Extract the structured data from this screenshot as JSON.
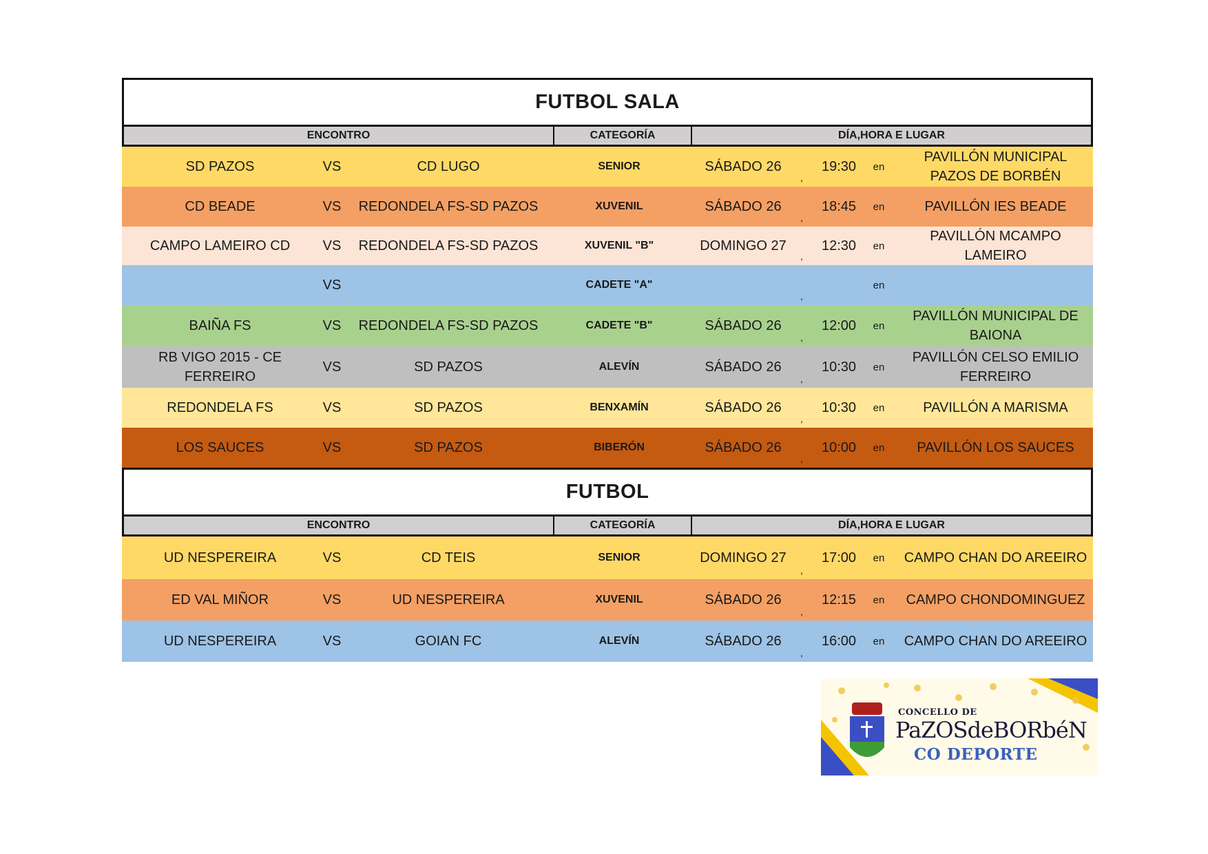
{
  "sections": [
    {
      "title": "FUTBOL SALA",
      "headers": {
        "encontro": "ENCONTRO",
        "categoria": "CATEGORÍA",
        "dia": "DÍA,HORA E LUGAR"
      },
      "rows": [
        {
          "home": "SD PAZOS",
          "vs": "VS",
          "away": "CD LUGO",
          "category": "SENIOR",
          "day": "SÁBADO 26",
          "sep": ",",
          "time": "19:30",
          "en": "en",
          "place": "PAVILLÓN MUNICIPAL PAZOS DE BORBÉN",
          "color": "#ffd966"
        },
        {
          "home": "CD BEADE",
          "vs": "VS",
          "away": "REDONDELA FS-SD PAZOS",
          "category": "XUVENIL",
          "day": "SÁBADO 26",
          "sep": ",",
          "time": "18:45",
          "en": "en",
          "place": "PAVILLÓN IES BEADE",
          "color": "#f4a064"
        },
        {
          "home": "CAMPO LAMEIRO CD",
          "vs": "VS",
          "away": "REDONDELA FS-SD PAZOS",
          "category": "XUVENIL \"B\"",
          "day": "DOMINGO 27",
          "sep": ",",
          "time": "12:30",
          "en": "en",
          "place": "PAVILLÓN MCAMPO LAMEIRO",
          "color": "#fce4d6"
        },
        {
          "home": "",
          "vs": "VS",
          "away": "",
          "category": "CADETE \"A\"",
          "day": "",
          "sep": ",",
          "time": "",
          "en": "en",
          "place": "",
          "color": "#9dc3e6"
        },
        {
          "home": "BAIÑA FS",
          "vs": "VS",
          "away": "REDONDELA FS-SD PAZOS",
          "category": "CADETE \"B\"",
          "day": "SÁBADO 26",
          "sep": ",",
          "time": "12:00",
          "en": "en",
          "place": "PAVILLÓN MUNICIPAL DE BAIONA",
          "color": "#a9d18e"
        },
        {
          "home": "RB VIGO 2015 - CE FERREIRO",
          "vs": "VS",
          "away": "SD PAZOS",
          "category": "ALEVÍN",
          "day": "SÁBADO 26",
          "sep": ",",
          "time": "10:30",
          "en": "en",
          "place": "PAVILLÓN CELSO EMILIO FERREIRO",
          "color": "#bfbfbf"
        },
        {
          "home": "REDONDELA FS",
          "vs": "VS",
          "away": "SD PAZOS",
          "category": "BENXAMÍN",
          "day": "SÁBADO 26",
          "sep": ",",
          "time": "10:30",
          "en": "en",
          "place": "PAVILLÓN A MARISMA",
          "color": "#ffe699"
        },
        {
          "home": "LOS SAUCES",
          "vs": "VS",
          "away": "SD PAZOS",
          "category": "BIBERÓN",
          "day": "SÁBADO 26",
          "sep": ",",
          "time": "10:00",
          "en": "en",
          "place": "PAVILLÓN LOS SAUCES",
          "color": "#c55a11"
        }
      ]
    },
    {
      "title": "FUTBOL",
      "headers": {
        "encontro": "ENCONTRO",
        "categoria": "CATEGORÍA",
        "dia": "DÍA,HORA E LUGAR"
      },
      "rows": [
        {
          "home": "UD NESPEREIRA",
          "vs": "VS",
          "away": "CD TEIS",
          "category": "SENIOR",
          "day": "DOMINGO 27",
          "sep": ",",
          "time": "17:00",
          "en": "en",
          "place": "CAMPO CHAN DO AREEIRO",
          "color": "#ffd966"
        },
        {
          "home": "ED VAL MIÑOR",
          "vs": "VS",
          "away": "UD NESPEREIRA",
          "category": "XUVENIL",
          "day": "SÁBADO 26",
          "sep": ",",
          "time": "12:15",
          "en": "en",
          "place": "CAMPO CHONDOMINGUEZ",
          "color": "#f4a064"
        },
        {
          "home": "UD NESPEREIRA",
          "vs": "VS",
          "away": "GOIAN FC",
          "category": "ALEVÍN",
          "day": "SÁBADO 26",
          "sep": ",",
          "time": "16:00",
          "en": "en",
          "place": "CAMPO CHAN DO AREEIRO",
          "color": "#9dc3e6"
        }
      ]
    }
  ],
  "logo": {
    "line1": "CONCELLO DE",
    "line2": "PaZOSdeBORbéN",
    "line3": "CO DEPORTE",
    "colors": {
      "yellow": "#f5c400",
      "blue": "#3b4fc4",
      "green": "#3f9b35",
      "red": "#b11e1e"
    }
  }
}
